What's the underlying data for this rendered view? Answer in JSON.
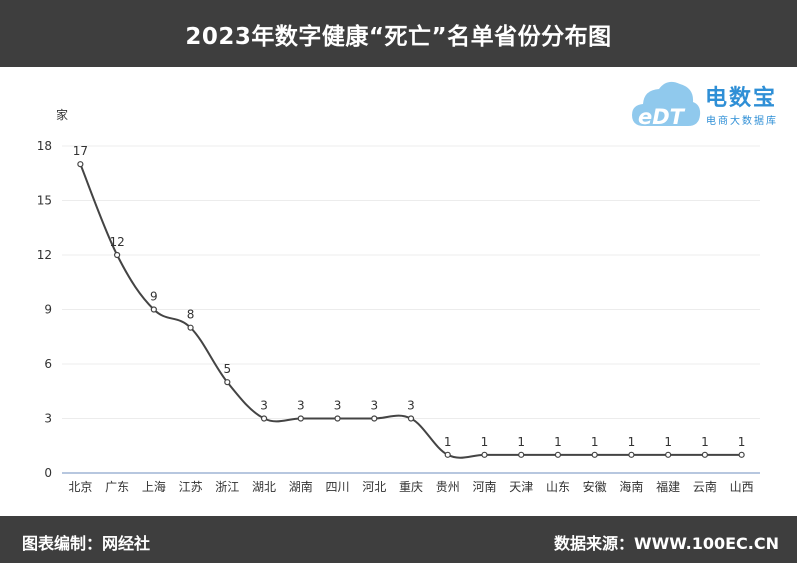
{
  "header": {
    "title": "2023年数字健康“死亡”名单省份分布图"
  },
  "footer": {
    "left": "图表编制：网经社",
    "right": "数据来源：WWW.100EC.CN"
  },
  "logo": {
    "mark": "eDT",
    "name": "电数宝",
    "sub": "电商大数据库"
  },
  "colors": {
    "band": "#3e3e3e",
    "line": "#444444",
    "axis": "#6f8fbf",
    "brand": "#2f8fd6"
  },
  "chart_data": {
    "type": "line",
    "ylabel": "家",
    "ylim": [
      0,
      18
    ],
    "yticks": [
      0,
      3,
      6,
      9,
      12,
      15,
      18
    ],
    "grid": true,
    "categories": [
      "北京",
      "广东",
      "上海",
      "江苏",
      "浙江",
      "湖北",
      "湖南",
      "四川",
      "河北",
      "重庆",
      "贵州",
      "河南",
      "天津",
      "山东",
      "安徽",
      "海南",
      "福建",
      "云南",
      "山西"
    ],
    "values": [
      17,
      12,
      9,
      8,
      5,
      3,
      3,
      3,
      3,
      3,
      1,
      1,
      1,
      1,
      1,
      1,
      1,
      1,
      1
    ]
  }
}
